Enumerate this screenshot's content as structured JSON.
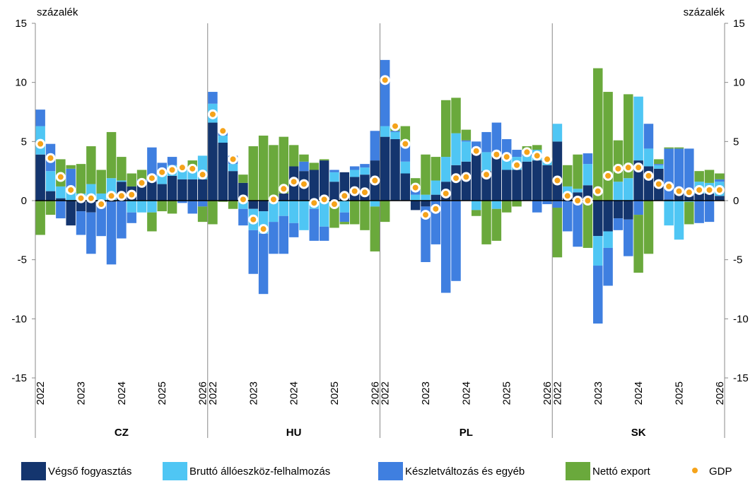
{
  "chart_data": {
    "type": "bar",
    "stacked": true,
    "y_label": "százalék",
    "y2_label": "százalék",
    "ylim": [
      -15,
      15
    ],
    "yticks": [
      -15,
      -10,
      -5,
      0,
      5,
      10,
      15
    ],
    "y2lim": [
      -15,
      15
    ],
    "y2ticks": [
      -15,
      -10,
      -5,
      0,
      5,
      10,
      15
    ],
    "legend": "bottom",
    "panels": [
      {
        "title": "CZ",
        "categories": [
          "2022",
          null,
          null,
          null,
          "2023",
          null,
          null,
          null,
          "2024",
          null,
          null,
          null,
          "2025",
          null,
          null,
          null,
          "2026"
        ]
      },
      {
        "title": "HU",
        "categories": [
          "2022",
          null,
          null,
          null,
          "2023",
          null,
          null,
          null,
          "2024",
          null,
          null,
          null,
          "2025",
          null,
          null,
          null,
          "2026"
        ]
      },
      {
        "title": "PL",
        "categories": [
          "2022",
          null,
          null,
          null,
          "2023",
          null,
          null,
          null,
          "2024",
          null,
          null,
          null,
          "2025",
          null,
          null,
          null,
          "2026"
        ]
      },
      {
        "title": "SK",
        "categories": [
          "2022",
          null,
          null,
          null,
          "2023",
          null,
          null,
          null,
          "2024",
          null,
          null,
          null,
          "2025",
          null,
          null,
          null,
          "2026"
        ]
      }
    ],
    "series": [
      {
        "name": "Végső fogyasztás",
        "color": "#14356e",
        "values": [
          [
            3.9,
            0.8,
            0.2,
            -2.1,
            -0.9,
            -1.0,
            -0.5,
            -0.1,
            1.6,
            1.2,
            1.6,
            1.6,
            1.4,
            2.1,
            1.8,
            1.8,
            1.8
          ],
          [
            6.6,
            4.9,
            2.5,
            1.5,
            -0.7,
            -0.9,
            0.2,
            0.6,
            2.9,
            2.5,
            2.6,
            3.4,
            1.6,
            2.4,
            2.0,
            2.2,
            3.4
          ],
          [
            5.4,
            5.2,
            2.3,
            -0.8,
            -0.5,
            0.5,
            1.6,
            3.0,
            3.3,
            4.1,
            2.5,
            4.0,
            2.6,
            2.6,
            3.3,
            3.4,
            3.0
          ],
          [
            5.0,
            0.5,
            0.7,
            1.3,
            -3.0,
            -2.6,
            -1.5,
            -1.6,
            3.4,
            2.9,
            2.7,
            0.1,
            0.6,
            0.4,
            0.6,
            0.6,
            0.4
          ]
        ]
      },
      {
        "name": "Bruttó állóeszköz-felhalmozás",
        "color": "#4fc6f4",
        "values": [
          [
            2.4,
            1.7,
            1.0,
            0.9,
            0.6,
            1.4,
            0.6,
            1.9,
            0.1,
            -1.0,
            -1.0,
            -1.0,
            1.2,
            0.9,
            0.8,
            0.8,
            2.0
          ],
          [
            1.6,
            0.6,
            0.6,
            -0.7,
            -1.8,
            -1.9,
            -1.8,
            -1.3,
            -1.9,
            -2.5,
            -0.7,
            -2.2,
            0.8,
            -1.0,
            0.6,
            0.6,
            -0.5
          ],
          [
            0.9,
            0.6,
            1.0,
            0.5,
            0.5,
            1.2,
            2.1,
            2.7,
            1.7,
            -0.8,
            1.6,
            -0.7,
            0.9,
            1.1,
            0.5,
            0.9,
            0.4
          ],
          [
            1.5,
            0.7,
            0.3,
            1.8,
            -2.5,
            -1.4,
            1.6,
            1.9,
            5.4,
            1.5,
            0.3,
            -2.1,
            -3.3,
            -0.1,
            1.0,
            0.9,
            1.2
          ]
        ]
      },
      {
        "name": "Készletváltozás és egyéb",
        "color": "#3f7fe0",
        "values": [
          [
            1.4,
            2.3,
            -1.5,
            1.8,
            -2.0,
            -3.5,
            -2.5,
            -5.3,
            -3.2,
            -0.9,
            0.2,
            2.9,
            0.6,
            0.7,
            -0.2,
            -1.1,
            -0.5
          ],
          [
            1.0,
            0.4,
            0.7,
            -1.4,
            -3.7,
            -5.1,
            -2.7,
            -3.2,
            -1.2,
            0.8,
            -2.7,
            -1.2,
            0.2,
            -0.8,
            0.3,
            0.3,
            2.5
          ],
          [
            5.6,
            0.1,
            1.5,
            0.5,
            -4.7,
            -3.7,
            -7.8,
            -6.8,
            0.1,
            0.9,
            1.7,
            2.6,
            1.7,
            0.6,
            0.5,
            -1.0,
            -0.3
          ],
          [
            -0.6,
            -2.6,
            -3.9,
            0.9,
            -4.9,
            -3.2,
            -1.0,
            -3.1,
            -1.2,
            2.1,
            0.1,
            4.3,
            3.8,
            4.0,
            -1.9,
            -1.8,
            0.2
          ]
        ]
      },
      {
        "name": "Nettó export",
        "color": "#6aa93c",
        "values": [
          [
            -2.9,
            -1.2,
            2.3,
            0.3,
            2.5,
            3.2,
            2.0,
            3.9,
            2.0,
            1.1,
            0.8,
            -1.6,
            -0.9,
            -1.1,
            0.3,
            0.8,
            -1.3
          ],
          [
            -2.0,
            -0.1,
            -0.7,
            0.7,
            4.6,
            5.5,
            4.5,
            4.8,
            1.8,
            0.6,
            0.6,
            0.1,
            -2.3,
            -0.2,
            -2.0,
            -2.5,
            -3.8
          ],
          [
            -1.8,
            0.3,
            1.5,
            0.9,
            3.4,
            2.0,
            4.8,
            3.0,
            0.9,
            -0.5,
            -3.7,
            -2.7,
            -1.0,
            -0.5,
            0.3,
            0.4,
            0.2
          ],
          [
            -4.2,
            1.8,
            2.9,
            -4.0,
            11.2,
            9.2,
            3.5,
            7.1,
            -4.9,
            -4.5,
            0.4,
            0.1,
            0.1,
            -1.9,
            0.9,
            1.1,
            0.5
          ]
        ]
      },
      {
        "name": "GDP",
        "color": "#f5a31a",
        "marker": "dot",
        "values": [
          [
            4.8,
            3.6,
            2.0,
            0.9,
            0.2,
            0.2,
            -0.3,
            0.4,
            0.4,
            0.5,
            1.5,
            1.9,
            2.4,
            2.6,
            2.8,
            2.7,
            2.2
          ],
          [
            7.3,
            5.9,
            3.5,
            0.1,
            -1.6,
            -2.4,
            0.1,
            1.0,
            1.6,
            1.4,
            -0.2,
            0.1,
            -0.3,
            0.4,
            0.8,
            0.7,
            1.7
          ],
          [
            10.2,
            6.3,
            4.8,
            1.1,
            -1.2,
            -0.7,
            0.6,
            1.9,
            2.0,
            4.2,
            2.2,
            3.9,
            3.7,
            3.0,
            4.1,
            3.8,
            3.5
          ],
          [
            1.7,
            0.4,
            0.0,
            0.0,
            0.8,
            2.1,
            2.7,
            2.8,
            2.8,
            2.1,
            1.4,
            1.2,
            0.8,
            0.7,
            0.9,
            0.9,
            0.9
          ]
        ]
      }
    ]
  }
}
